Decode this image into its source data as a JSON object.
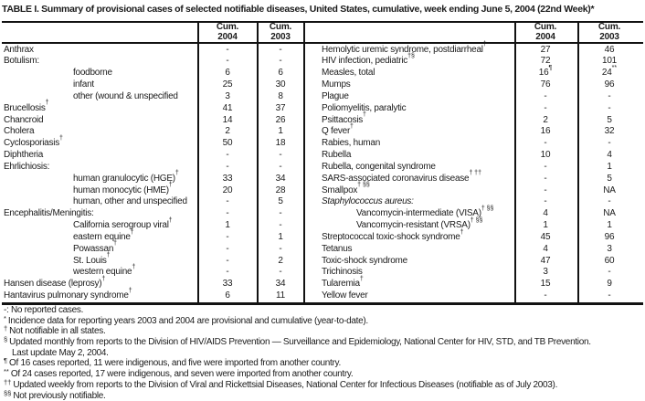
{
  "title": "TABLE I. Summary of provisional cases of selected notifiable diseases, United States, cumulative, week ending June 5, 2004 (22nd Week)*",
  "columns": {
    "cum": "Cum.",
    "y2004": "2004",
    "y2003": "2003"
  },
  "left_table": {
    "rows": [
      {
        "label": "Anthrax",
        "c2004": "-",
        "c2003": "-"
      },
      {
        "label": "Botulism:",
        "c2004": "-",
        "c2003": "-"
      },
      {
        "label": "foodborne",
        "indent": 1,
        "c2004": "6",
        "c2003": "6"
      },
      {
        "label": "infant",
        "indent": 1,
        "c2004": "25",
        "c2003": "30"
      },
      {
        "label": "other (wound & unspecified",
        "indent": 1,
        "c2004": "3",
        "c2003": "8"
      },
      {
        "label": "Brucellosis",
        "sup": "†",
        "c2004": "41",
        "c2003": "37"
      },
      {
        "label": "Chancroid",
        "c2004": "14",
        "c2003": "26"
      },
      {
        "label": "Cholera",
        "c2004": "2",
        "c2003": "1"
      },
      {
        "label": "Cyclosporiasis",
        "sup": "†",
        "c2004": "50",
        "c2003": "18"
      },
      {
        "label": "Diphtheria",
        "c2004": "-",
        "c2003": "-"
      },
      {
        "label": "Ehrlichiosis:",
        "c2004": "-",
        "c2003": "-"
      },
      {
        "label": "human granulocytic (HGE)",
        "sup": "†",
        "indent": 1,
        "c2004": "33",
        "c2003": "34"
      },
      {
        "label": "human monocytic (HME)",
        "sup": "†",
        "indent": 1,
        "c2004": "20",
        "c2003": "28"
      },
      {
        "label": "human, other and unspecified",
        "indent": 1,
        "c2004": "-",
        "c2003": "5"
      },
      {
        "label": "Encephalitis/Meningitis:",
        "c2004": "-",
        "c2003": "-"
      },
      {
        "label": "California serogroup viral",
        "sup": "†",
        "indent": 1,
        "c2004": "1",
        "c2003": "-"
      },
      {
        "label": "eastern equine",
        "sup": "†",
        "indent": 1,
        "c2004": "-",
        "c2003": "1"
      },
      {
        "label": "Powassan",
        "sup": "†",
        "indent": 1,
        "c2004": "-",
        "c2003": "-"
      },
      {
        "label": "St. Louis",
        "sup": "†",
        "indent": 1,
        "c2004": "-",
        "c2003": "2"
      },
      {
        "label": "western equine",
        "sup": "†",
        "indent": 1,
        "c2004": "-",
        "c2003": "-"
      },
      {
        "label": "Hansen disease (leprosy)",
        "sup": "†",
        "c2004": "33",
        "c2003": "34"
      },
      {
        "label": "Hantavirus pulmonary syndrome",
        "sup": "†",
        "c2004": "6",
        "c2003": "11"
      }
    ]
  },
  "right_table": {
    "rows": [
      {
        "label": "Hemolytic uremic syndrome, postdiarrheal",
        "sup": "†",
        "c2004": "27",
        "c2003": "46"
      },
      {
        "label": "HIV infection, pediatric",
        "sup": "†§",
        "c2004": "72",
        "c2003": "101"
      },
      {
        "label": "Measles, total",
        "c2004": "16",
        "c2004_sup": "¶",
        "c2003": "24",
        "c2003_sup": "**"
      },
      {
        "label": "Mumps",
        "c2004": "76",
        "c2003": "96"
      },
      {
        "label": "Plague",
        "c2004": "-",
        "c2003": "-"
      },
      {
        "label": "Poliomyelitis, paralytic",
        "c2004": "-",
        "c2003": "-"
      },
      {
        "label": "Psittacosis",
        "sup": "†",
        "c2004": "2",
        "c2003": "5"
      },
      {
        "label": "Q fever",
        "sup": "†",
        "c2004": "16",
        "c2003": "32"
      },
      {
        "label": "Rabies, human",
        "c2004": "-",
        "c2003": "-"
      },
      {
        "label": "Rubella",
        "c2004": "10",
        "c2003": "4"
      },
      {
        "label": "Rubella, congenital syndrome",
        "c2004": "-",
        "c2003": "1"
      },
      {
        "label": "SARS-associated coronavirus disease",
        "sup": "† ††",
        "c2004": "-",
        "c2003": "5"
      },
      {
        "label": "Smallpox",
        "sup": "† §§",
        "c2004": "-",
        "c2003": "NA"
      },
      {
        "label": "Staphylococcus aureus:",
        "italic": 1,
        "c2004": "-",
        "c2003": "-"
      },
      {
        "label": "Vancomycin-intermediate (VISA)",
        "sup": "† §§",
        "indent": 1,
        "c2004": "4",
        "c2003": "NA"
      },
      {
        "label": "Vancomycin-resistant (VRSA)",
        "sup": "† §§",
        "indent": 1,
        "c2004": "1",
        "c2003": "1"
      },
      {
        "label": "Streptococcal toxic-shock syndrome",
        "sup": "†",
        "c2004": "45",
        "c2003": "96"
      },
      {
        "label": "Tetanus",
        "c2004": "4",
        "c2003": "3"
      },
      {
        "label": "Toxic-shock syndrome",
        "c2004": "47",
        "c2003": "60"
      },
      {
        "label": "Trichinosis",
        "c2004": "3",
        "c2003": "-"
      },
      {
        "label": "Tularemia",
        "sup": "†",
        "c2004": "15",
        "c2003": "9"
      },
      {
        "label": "Yellow fever",
        "c2004": "-",
        "c2003": "-"
      }
    ]
  },
  "footnotes": [
    {
      "marker": "",
      "text": "-: No reported cases."
    },
    {
      "marker": "*",
      "text": "Incidence data for reporting years 2003 and 2004 are provisional and cumulative (year-to-date)."
    },
    {
      "marker": "†",
      "text": "Not notifiable in all states."
    },
    {
      "marker": "§",
      "text": "Updated monthly from reports to the Division of HIV/AIDS Prevention — Surveillance and Epidemiology, National Center for HIV, STD, and TB Prevention."
    },
    {
      "marker": "",
      "cont": 1,
      "text": "Last update May 2, 2004."
    },
    {
      "marker": "¶",
      "text": "Of 16 cases reported, 11 were indigenous, and five were imported from another country."
    },
    {
      "marker": "**",
      "text": "Of 24 cases reported, 17 were indigenous, and seven were imported from another country."
    },
    {
      "marker": "††",
      "text": "Updated weekly from reports to the Division of Viral and Rickettsial Diseases, National Center for Infectious Diseases (notifiable as of July 2003)."
    },
    {
      "marker": "§§",
      "text": "Not previously notifiable."
    }
  ]
}
